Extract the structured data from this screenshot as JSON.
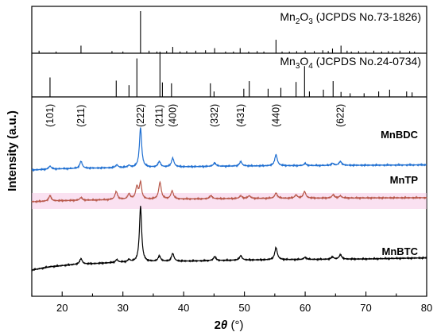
{
  "chart_data": {
    "type": "line",
    "title": "",
    "xlabel": {
      "main": "2",
      "italic": "θ",
      "unit": " (°)"
    },
    "ylabel": "Intensity (a.u.)",
    "xlim": [
      15,
      80
    ],
    "x_ticks": [
      20,
      30,
      40,
      50,
      60,
      70,
      80
    ],
    "grid": false,
    "references": [
      {
        "name": {
          "base": "Mn",
          "sub1": "2",
          "mid": "O",
          "sub2": "3",
          "tail": " (JCPDS No.73-1826)"
        },
        "color": "#000000",
        "lines": [
          {
            "x": 16.2,
            "h": 0.06
          },
          {
            "x": 19.0,
            "h": 0.04
          },
          {
            "x": 23.1,
            "h": 0.18
          },
          {
            "x": 28.2,
            "h": 0.05
          },
          {
            "x": 30.0,
            "h": 0.04
          },
          {
            "x": 32.9,
            "h": 1.0
          },
          {
            "x": 34.3,
            "h": 0.06
          },
          {
            "x": 35.6,
            "h": 0.04
          },
          {
            "x": 37.2,
            "h": 0.05
          },
          {
            "x": 38.2,
            "h": 0.15
          },
          {
            "x": 39.4,
            "h": 0.04
          },
          {
            "x": 40.5,
            "h": 0.05
          },
          {
            "x": 42.0,
            "h": 0.06
          },
          {
            "x": 43.6,
            "h": 0.07
          },
          {
            "x": 45.1,
            "h": 0.12
          },
          {
            "x": 46.9,
            "h": 0.04
          },
          {
            "x": 48.2,
            "h": 0.04
          },
          {
            "x": 49.3,
            "h": 0.12
          },
          {
            "x": 50.7,
            "h": 0.04
          },
          {
            "x": 52.1,
            "h": 0.05
          },
          {
            "x": 53.2,
            "h": 0.04
          },
          {
            "x": 55.2,
            "h": 0.32
          },
          {
            "x": 56.2,
            "h": 0.04
          },
          {
            "x": 57.4,
            "h": 0.04
          },
          {
            "x": 58.6,
            "h": 0.05
          },
          {
            "x": 60.0,
            "h": 0.06
          },
          {
            "x": 61.5,
            "h": 0.05
          },
          {
            "x": 62.9,
            "h": 0.07
          },
          {
            "x": 63.8,
            "h": 0.05
          },
          {
            "x": 64.5,
            "h": 0.11
          },
          {
            "x": 65.9,
            "h": 0.18
          },
          {
            "x": 66.9,
            "h": 0.06
          },
          {
            "x": 67.6,
            "h": 0.04
          },
          {
            "x": 68.8,
            "h": 0.05
          },
          {
            "x": 70.0,
            "h": 0.04
          },
          {
            "x": 71.3,
            "h": 0.06
          },
          {
            "x": 72.6,
            "h": 0.04
          },
          {
            "x": 73.7,
            "h": 0.05
          },
          {
            "x": 74.4,
            "h": 0.04
          },
          {
            "x": 75.6,
            "h": 0.06
          },
          {
            "x": 77.2,
            "h": 0.05
          },
          {
            "x": 78.0,
            "h": 0.04
          }
        ]
      },
      {
        "name": {
          "base": "Mn",
          "sub1": "3",
          "mid": "O",
          "sub2": "4",
          "tail": " (JCPDS No.24-0734)"
        },
        "color": "#000000",
        "lines": [
          {
            "x": 18.0,
            "h": 0.43
          },
          {
            "x": 28.9,
            "h": 0.36
          },
          {
            "x": 31.0,
            "h": 0.26
          },
          {
            "x": 32.3,
            "h": 0.85
          },
          {
            "x": 36.1,
            "h": 1.0
          },
          {
            "x": 36.5,
            "h": 0.32
          },
          {
            "x": 38.0,
            "h": 0.3
          },
          {
            "x": 44.4,
            "h": 0.3
          },
          {
            "x": 45.0,
            "h": 0.12
          },
          {
            "x": 49.9,
            "h": 0.18
          },
          {
            "x": 50.8,
            "h": 0.35
          },
          {
            "x": 53.9,
            "h": 0.18
          },
          {
            "x": 56.0,
            "h": 0.2
          },
          {
            "x": 58.5,
            "h": 0.33
          },
          {
            "x": 59.9,
            "h": 0.68
          },
          {
            "x": 60.7,
            "h": 0.12
          },
          {
            "x": 63.0,
            "h": 0.16
          },
          {
            "x": 64.6,
            "h": 0.35
          },
          {
            "x": 65.9,
            "h": 0.11
          },
          {
            "x": 67.4,
            "h": 0.08
          },
          {
            "x": 69.7,
            "h": 0.08
          },
          {
            "x": 72.1,
            "h": 0.12
          },
          {
            "x": 73.9,
            "h": 0.16
          },
          {
            "x": 76.7,
            "h": 0.12
          },
          {
            "x": 77.6,
            "h": 0.1
          }
        ]
      }
    ],
    "peak_labels": [
      {
        "text": "(101)",
        "x": 18.0
      },
      {
        "text": "(211)",
        "x": 23.1
      },
      {
        "text": "(222)",
        "x": 32.9
      },
      {
        "text": "(211)",
        "x": 36.0
      },
      {
        "text": "(400)",
        "x": 38.2
      },
      {
        "text": "(332)",
        "x": 45.1
      },
      {
        "text": "(431)",
        "x": 49.4
      },
      {
        "text": "(440)",
        "x": 55.2
      },
      {
        "text": "(622)",
        "x": 65.8
      }
    ],
    "series": [
      {
        "name": "MnBDC",
        "color": "#1f6fd1",
        "baseline": [
          [
            15,
            0.0
          ],
          [
            20,
            0.03
          ],
          [
            30,
            0.06
          ],
          [
            50,
            0.1
          ],
          [
            70,
            0.12
          ],
          [
            80,
            0.13
          ]
        ],
        "peaks": [
          {
            "x": 18.0,
            "h": 0.08,
            "w": 0.25
          },
          {
            "x": 23.1,
            "h": 0.18,
            "w": 0.25
          },
          {
            "x": 29.0,
            "h": 0.07,
            "w": 0.25
          },
          {
            "x": 31.0,
            "h": 0.05,
            "w": 0.25
          },
          {
            "x": 32.9,
            "h": 1.0,
            "w": 0.22
          },
          {
            "x": 36.0,
            "h": 0.14,
            "w": 0.25
          },
          {
            "x": 38.2,
            "h": 0.22,
            "w": 0.25
          },
          {
            "x": 45.1,
            "h": 0.09,
            "w": 0.25
          },
          {
            "x": 49.4,
            "h": 0.11,
            "w": 0.25
          },
          {
            "x": 55.2,
            "h": 0.28,
            "w": 0.25
          },
          {
            "x": 60.0,
            "h": 0.05,
            "w": 0.25
          },
          {
            "x": 64.5,
            "h": 0.05,
            "w": 0.25
          },
          {
            "x": 65.8,
            "h": 0.1,
            "w": 0.25
          }
        ]
      },
      {
        "name": "MnTP",
        "color": "#b8584a",
        "baseline": [
          [
            15,
            0.0
          ],
          [
            20,
            0.04
          ],
          [
            30,
            0.08
          ],
          [
            50,
            0.12
          ],
          [
            70,
            0.14
          ],
          [
            80,
            0.15
          ]
        ],
        "peaks": [
          {
            "x": 18.0,
            "h": 0.2,
            "w": 0.25
          },
          {
            "x": 23.1,
            "h": 0.1,
            "w": 0.25
          },
          {
            "x": 28.9,
            "h": 0.3,
            "w": 0.25
          },
          {
            "x": 31.0,
            "h": 0.2,
            "w": 0.25
          },
          {
            "x": 32.3,
            "h": 0.45,
            "w": 0.25
          },
          {
            "x": 32.9,
            "h": 0.6,
            "w": 0.22
          },
          {
            "x": 36.1,
            "h": 0.62,
            "w": 0.25
          },
          {
            "x": 38.1,
            "h": 0.3,
            "w": 0.25
          },
          {
            "x": 44.5,
            "h": 0.12,
            "w": 0.25
          },
          {
            "x": 49.4,
            "h": 0.1,
            "w": 0.25
          },
          {
            "x": 50.8,
            "h": 0.1,
            "w": 0.25
          },
          {
            "x": 55.2,
            "h": 0.2,
            "w": 0.25
          },
          {
            "x": 58.5,
            "h": 0.12,
            "w": 0.25
          },
          {
            "x": 59.9,
            "h": 0.25,
            "w": 0.25
          },
          {
            "x": 64.6,
            "h": 0.12,
            "w": 0.25
          },
          {
            "x": 65.8,
            "h": 0.08,
            "w": 0.25
          }
        ]
      },
      {
        "name": "MnBTC",
        "color": "#000000",
        "baseline": [
          [
            15,
            0.0
          ],
          [
            18,
            0.06
          ],
          [
            22,
            0.1
          ],
          [
            30,
            0.14
          ],
          [
            50,
            0.18
          ],
          [
            70,
            0.2
          ],
          [
            80,
            0.22
          ]
        ],
        "peaks": [
          {
            "x": 23.1,
            "h": 0.1,
            "w": 0.25
          },
          {
            "x": 29.0,
            "h": 0.05,
            "w": 0.25
          },
          {
            "x": 31.0,
            "h": 0.04,
            "w": 0.25
          },
          {
            "x": 32.9,
            "h": 1.0,
            "w": 0.22
          },
          {
            "x": 36.0,
            "h": 0.1,
            "w": 0.25
          },
          {
            "x": 38.2,
            "h": 0.14,
            "w": 0.25
          },
          {
            "x": 45.1,
            "h": 0.07,
            "w": 0.25
          },
          {
            "x": 49.4,
            "h": 0.08,
            "w": 0.25
          },
          {
            "x": 55.2,
            "h": 0.22,
            "w": 0.25
          },
          {
            "x": 60.0,
            "h": 0.04,
            "w": 0.25
          },
          {
            "x": 64.5,
            "h": 0.04,
            "w": 0.25
          },
          {
            "x": 65.8,
            "h": 0.08,
            "w": 0.25
          }
        ]
      }
    ]
  }
}
